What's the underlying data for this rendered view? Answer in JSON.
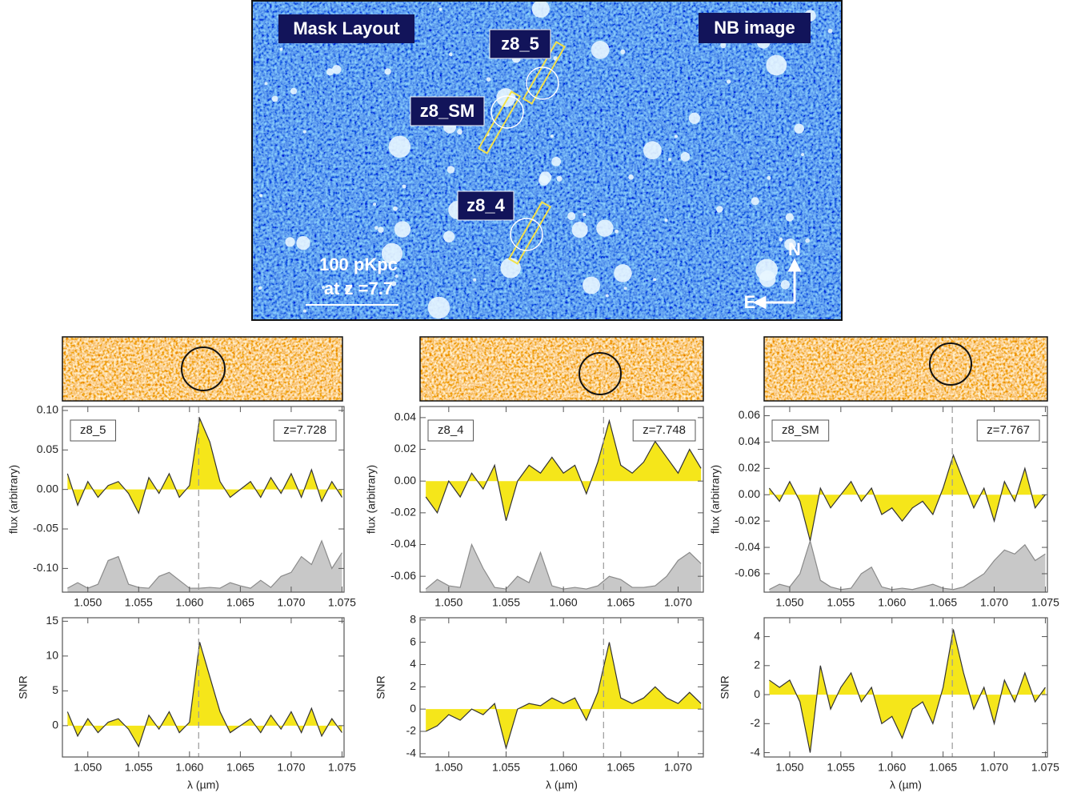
{
  "image_panel": {
    "title_left": "Mask Layout",
    "title_right": "NB image",
    "targets": [
      "z8_5",
      "z8_SM",
      "z8_4"
    ],
    "scale_bar": [
      "100 pKpc",
      "at z =7.7"
    ],
    "compass": [
      "N",
      "E"
    ]
  },
  "chart_data": [
    {
      "type": "line",
      "xlabel": "λ (µm)",
      "xlim": [
        1.0475,
        1.0752
      ],
      "marker_x": 1.0609,
      "xticks": [
        {
          "value": 1.05,
          "label": "1.050"
        },
        {
          "value": 1.055,
          "label": "1.055"
        },
        {
          "value": 1.06,
          "label": "1.060"
        },
        {
          "value": 1.065,
          "label": "1.065"
        },
        {
          "value": 1.07,
          "label": "1.070"
        },
        {
          "value": 1.075,
          "label": "1.075"
        }
      ],
      "x": [
        1.048,
        1.049,
        1.05,
        1.051,
        1.052,
        1.053,
        1.054,
        1.055,
        1.056,
        1.057,
        1.058,
        1.059,
        1.06,
        1.061,
        1.062,
        1.063,
        1.064,
        1.065,
        1.066,
        1.067,
        1.068,
        1.069,
        1.07,
        1.071,
        1.072,
        1.073,
        1.074,
        1.075
      ],
      "panels": [
        {
          "ylabel": "flux (arbitrary)",
          "ylim": [
            -0.13,
            0.105
          ],
          "annotations": [
            "z8_5",
            "z=7.728"
          ],
          "yticks": [
            {
              "value": -0.1,
              "label": "-0.10"
            },
            {
              "value": -0.05,
              "label": "-0.05"
            },
            {
              "value": 0,
              "label": "0.00"
            },
            {
              "value": 0.05,
              "label": "0.05"
            },
            {
              "value": 0.1,
              "label": "0.10"
            }
          ],
          "series": [
            {
              "color": "#c8c8c8",
              "fill": "bottom",
              "values": [
                -0.125,
                -0.118,
                -0.125,
                -0.12,
                -0.09,
                -0.085,
                -0.12,
                -0.124,
                -0.125,
                -0.11,
                -0.105,
                -0.115,
                -0.125,
                -0.125,
                -0.124,
                -0.125,
                -0.118,
                -0.122,
                -0.125,
                -0.115,
                -0.124,
                -0.11,
                -0.105,
                -0.085,
                -0.095,
                -0.065,
                -0.1,
                -0.08
              ]
            },
            {
              "color": "#f5e61a",
              "fill": "zero",
              "values": [
                0.02,
                -0.02,
                0.01,
                -0.01,
                0.005,
                0.01,
                -0.005,
                -0.03,
                0.015,
                -0.005,
                0.02,
                -0.01,
                0.005,
                0.09,
                0.06,
                0.01,
                -0.01,
                0,
                0.01,
                -0.01,
                0.015,
                -0.005,
                0.02,
                -0.01,
                0.025,
                -0.015,
                0.01,
                -0.01
              ]
            }
          ]
        },
        {
          "ylabel": "SNR",
          "ylim": [
            -4.5,
            15.5
          ],
          "yticks": [
            0,
            5,
            10,
            15
          ],
          "series": [
            {
              "color": "#f5e61a",
              "fill": "zero",
              "values": [
                2,
                -1.5,
                1,
                -1,
                0.5,
                1,
                -0.5,
                -3,
                1.5,
                -0.5,
                2,
                -1,
                0.5,
                12,
                7,
                2,
                -1,
                0,
                1,
                -1,
                1.5,
                -0.5,
                2,
                -1,
                2.5,
                -1.5,
                1,
                -1
              ]
            }
          ]
        }
      ]
    },
    {
      "type": "line",
      "xlabel": "λ (µm)",
      "xlim": [
        1.0475,
        1.0722
      ],
      "marker_x": 1.0635,
      "xticks": [
        {
          "value": 1.05,
          "label": "1.050"
        },
        {
          "value": 1.055,
          "label": "1.055"
        },
        {
          "value": 1.06,
          "label": "1.060"
        },
        {
          "value": 1.065,
          "label": "1.065"
        },
        {
          "value": 1.07,
          "label": "1.070"
        }
      ],
      "x": [
        1.048,
        1.049,
        1.05,
        1.051,
        1.052,
        1.053,
        1.054,
        1.055,
        1.056,
        1.057,
        1.058,
        1.059,
        1.06,
        1.061,
        1.062,
        1.063,
        1.064,
        1.065,
        1.066,
        1.067,
        1.068,
        1.069,
        1.07,
        1.071,
        1.072
      ],
      "panels": [
        {
          "ylabel": "flux (arbitrary)",
          "ylim": [
            -0.07,
            0.047
          ],
          "annotations": [
            "z8_4",
            "z=7.748"
          ],
          "yticks": [
            {
              "value": -0.06,
              "label": "-0.06"
            },
            {
              "value": -0.04,
              "label": "-0.04"
            },
            {
              "value": -0.02,
              "label": "-0.02"
            },
            {
              "value": 0,
              "label": "0.00"
            },
            {
              "value": 0.02,
              "label": "0.02"
            },
            {
              "value": 0.04,
              "label": "0.04"
            }
          ],
          "series": [
            {
              "color": "#c8c8c8",
              "fill": "bottom",
              "values": [
                -0.068,
                -0.062,
                -0.066,
                -0.067,
                -0.04,
                -0.055,
                -0.067,
                -0.068,
                -0.06,
                -0.064,
                -0.045,
                -0.066,
                -0.068,
                -0.067,
                -0.068,
                -0.066,
                -0.06,
                -0.062,
                -0.067,
                -0.067,
                -0.066,
                -0.06,
                -0.05,
                -0.045,
                -0.052
              ]
            },
            {
              "color": "#f5e61a",
              "fill": "zero",
              "values": [
                -0.01,
                -0.02,
                0,
                -0.01,
                0.005,
                -0.005,
                0.01,
                -0.025,
                0,
                0.01,
                0.005,
                0.015,
                0.005,
                0.01,
                -0.008,
                0.012,
                0.038,
                0.01,
                0.005,
                0.012,
                0.025,
                0.015,
                0.005,
                0.02,
                0.008
              ]
            }
          ]
        },
        {
          "ylabel": "SNR",
          "ylim": [
            -4.3,
            8.2
          ],
          "yticks": [
            -4,
            -2,
            0,
            2,
            4,
            6,
            8
          ],
          "series": [
            {
              "color": "#f5e61a",
              "fill": "zero",
              "values": [
                -2,
                -1.5,
                -0.5,
                -1,
                0,
                -0.5,
                0.5,
                -3.5,
                0,
                0.5,
                0.3,
                1,
                0.5,
                1,
                -1,
                1.5,
                6,
                1,
                0.5,
                1,
                2,
                1,
                0.5,
                1.5,
                0.5
              ]
            }
          ]
        }
      ]
    },
    {
      "type": "line",
      "xlabel": "λ (µm)",
      "xlim": [
        1.0475,
        1.0752
      ],
      "marker_x": 1.0659,
      "xticks": [
        {
          "value": 1.05,
          "label": "1.050"
        },
        {
          "value": 1.055,
          "label": "1.055"
        },
        {
          "value": 1.06,
          "label": "1.060"
        },
        {
          "value": 1.065,
          "label": "1.065"
        },
        {
          "value": 1.07,
          "label": "1.070"
        },
        {
          "value": 1.075,
          "label": "1.075"
        }
      ],
      "x": [
        1.048,
        1.049,
        1.05,
        1.051,
        1.052,
        1.053,
        1.054,
        1.055,
        1.056,
        1.057,
        1.058,
        1.059,
        1.06,
        1.061,
        1.062,
        1.063,
        1.064,
        1.065,
        1.066,
        1.067,
        1.068,
        1.069,
        1.07,
        1.071,
        1.072,
        1.073,
        1.074,
        1.075
      ],
      "panels": [
        {
          "ylabel": "flux (arbitrary)",
          "ylim": [
            -0.074,
            0.067
          ],
          "annotations": [
            "z8_SM",
            "z=7.767"
          ],
          "yticks": [
            {
              "value": -0.06,
              "label": "-0.06"
            },
            {
              "value": -0.04,
              "label": "-0.04"
            },
            {
              "value": -0.02,
              "label": "-0.02"
            },
            {
              "value": 0,
              "label": "0.00"
            },
            {
              "value": 0.02,
              "label": "0.02"
            },
            {
              "value": 0.04,
              "label": "0.04"
            },
            {
              "value": 0.06,
              "label": "0.06"
            }
          ],
          "series": [
            {
              "color": "#c8c8c8",
              "fill": "bottom",
              "values": [
                -0.072,
                -0.068,
                -0.07,
                -0.06,
                -0.035,
                -0.065,
                -0.07,
                -0.072,
                -0.071,
                -0.06,
                -0.055,
                -0.07,
                -0.072,
                -0.071,
                -0.072,
                -0.07,
                -0.068,
                -0.071,
                -0.072,
                -0.07,
                -0.065,
                -0.06,
                -0.05,
                -0.042,
                -0.045,
                -0.038,
                -0.05,
                -0.045
              ]
            },
            {
              "color": "#f5e61a",
              "fill": "zero",
              "values": [
                0.005,
                -0.005,
                0.01,
                -0.005,
                -0.035,
                0.005,
                -0.01,
                0,
                0.01,
                -0.005,
                0.005,
                -0.015,
                -0.01,
                -0.02,
                -0.01,
                -0.005,
                -0.015,
                0.005,
                0.03,
                0.01,
                -0.01,
                0.005,
                -0.02,
                0.01,
                -0.005,
                0.02,
                -0.01,
                0
              ]
            }
          ]
        },
        {
          "ylabel": "SNR",
          "ylim": [
            -4.3,
            5.3
          ],
          "yticks": [
            -4,
            -2,
            0,
            2,
            4
          ],
          "series": [
            {
              "color": "#f5e61a",
              "fill": "zero",
              "values": [
                1,
                0.5,
                1,
                -0.5,
                -4,
                2,
                -1,
                0.5,
                1.5,
                -0.5,
                0.5,
                -2,
                -1.5,
                -3,
                -1,
                -0.5,
                -2,
                0.5,
                4.5,
                1.5,
                -1,
                0.5,
                -2,
                1,
                -0.5,
                1.5,
                -0.5,
                0.5
              ]
            }
          ]
        }
      ]
    }
  ]
}
